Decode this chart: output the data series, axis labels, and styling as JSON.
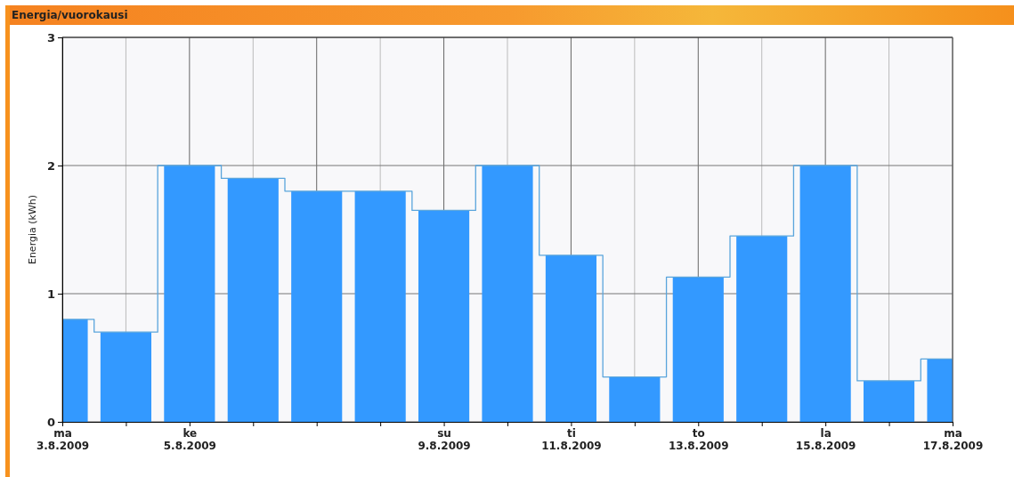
{
  "chart_data": {
    "type": "bar",
    "title": "Energia/vuorokausi",
    "ylabel": "Energia (kWh)",
    "x": [
      "2009-08-03",
      "2009-08-04",
      "2009-08-05",
      "2009-08-06",
      "2009-08-07",
      "2009-08-08",
      "2009-08-09",
      "2009-08-10",
      "2009-08-11",
      "2009-08-12",
      "2009-08-13",
      "2009-08-14",
      "2009-08-15",
      "2009-08-16",
      "2009-08-17"
    ],
    "series": [
      {
        "color": "#3399ff",
        "values": [
          0.8,
          0.7,
          2.0,
          1.9,
          1.8,
          1.8,
          1.65,
          2.0,
          1.3,
          0.35,
          1.13,
          1.45,
          2.0,
          0.32,
          0.49
        ]
      },
      {
        "type": "step",
        "color": "#5aa5dc",
        "values": [
          0.8,
          0.7,
          2.0,
          1.9,
          1.8,
          1.8,
          1.65,
          2.0,
          1.3,
          0.35,
          1.13,
          1.45,
          2.0,
          0.32,
          0.49
        ]
      }
    ],
    "xlim": [
      "2009-08-03",
      "2009-08-17"
    ],
    "xticks": [
      {
        "value": "2009-08-03",
        "label": "ma\n3.8.2009"
      },
      {
        "value": "2009-08-04",
        "label": null
      },
      {
        "value": "2009-08-05",
        "label": "ke\n5.8.2009"
      },
      {
        "value": "2009-08-06",
        "label": null
      },
      {
        "value": "2009-08-07",
        "label": null
      },
      {
        "value": "2009-08-08",
        "label": null
      },
      {
        "value": "2009-08-09",
        "label": "su\n9.8.2009"
      },
      {
        "value": "2009-08-10",
        "label": null
      },
      {
        "value": "2009-08-11",
        "label": "ti\n11.8.2009"
      },
      {
        "value": "2009-08-12",
        "label": null
      },
      {
        "value": "2009-08-13",
        "label": "to\n13.8.2009"
      },
      {
        "value": "2009-08-14",
        "label": null
      },
      {
        "value": "2009-08-15",
        "label": "la\n15.8.2009"
      },
      {
        "value": "2009-08-16",
        "label": null
      },
      {
        "value": "2009-08-17",
        "label": "ma\n17.8.2009"
      }
    ],
    "ylim": [
      0,
      3
    ],
    "yticks": [
      0,
      1,
      2,
      3
    ],
    "grid": true
  }
}
